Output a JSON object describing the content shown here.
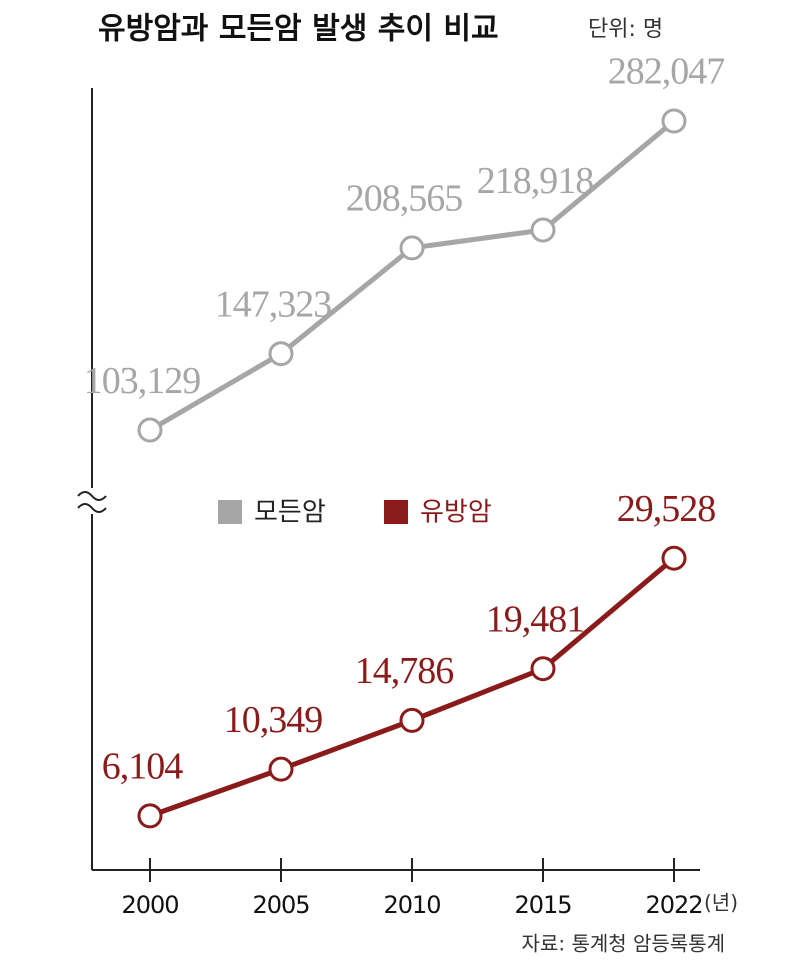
{
  "chart_data": {
    "type": "line",
    "title": "유방암과 모든암 발생 추이 비교",
    "unit": "단위: 명",
    "categories": [
      "2000",
      "2005",
      "2010",
      "2015",
      "2022"
    ],
    "x_unit": "(년)",
    "source": "자료: 통계청 암등록통계",
    "broken_axis": true,
    "series": [
      {
        "name": "모든암",
        "color": "#a6a6a6",
        "ylim": [
          80000,
          300000
        ],
        "values": [
          103129,
          147323,
          208565,
          218918,
          282047
        ],
        "value_labels": [
          "103,129",
          "147,323",
          "208,565",
          "218,918",
          "282,047"
        ]
      },
      {
        "name": "유방암",
        "color": "#8b1a1a",
        "ylim": [
          3000,
          33000
        ],
        "values": [
          6104,
          10349,
          14786,
          19481,
          29528
        ],
        "value_labels": [
          "6,104",
          "10,349",
          "14,786",
          "19,481",
          "29,528"
        ]
      }
    ]
  }
}
